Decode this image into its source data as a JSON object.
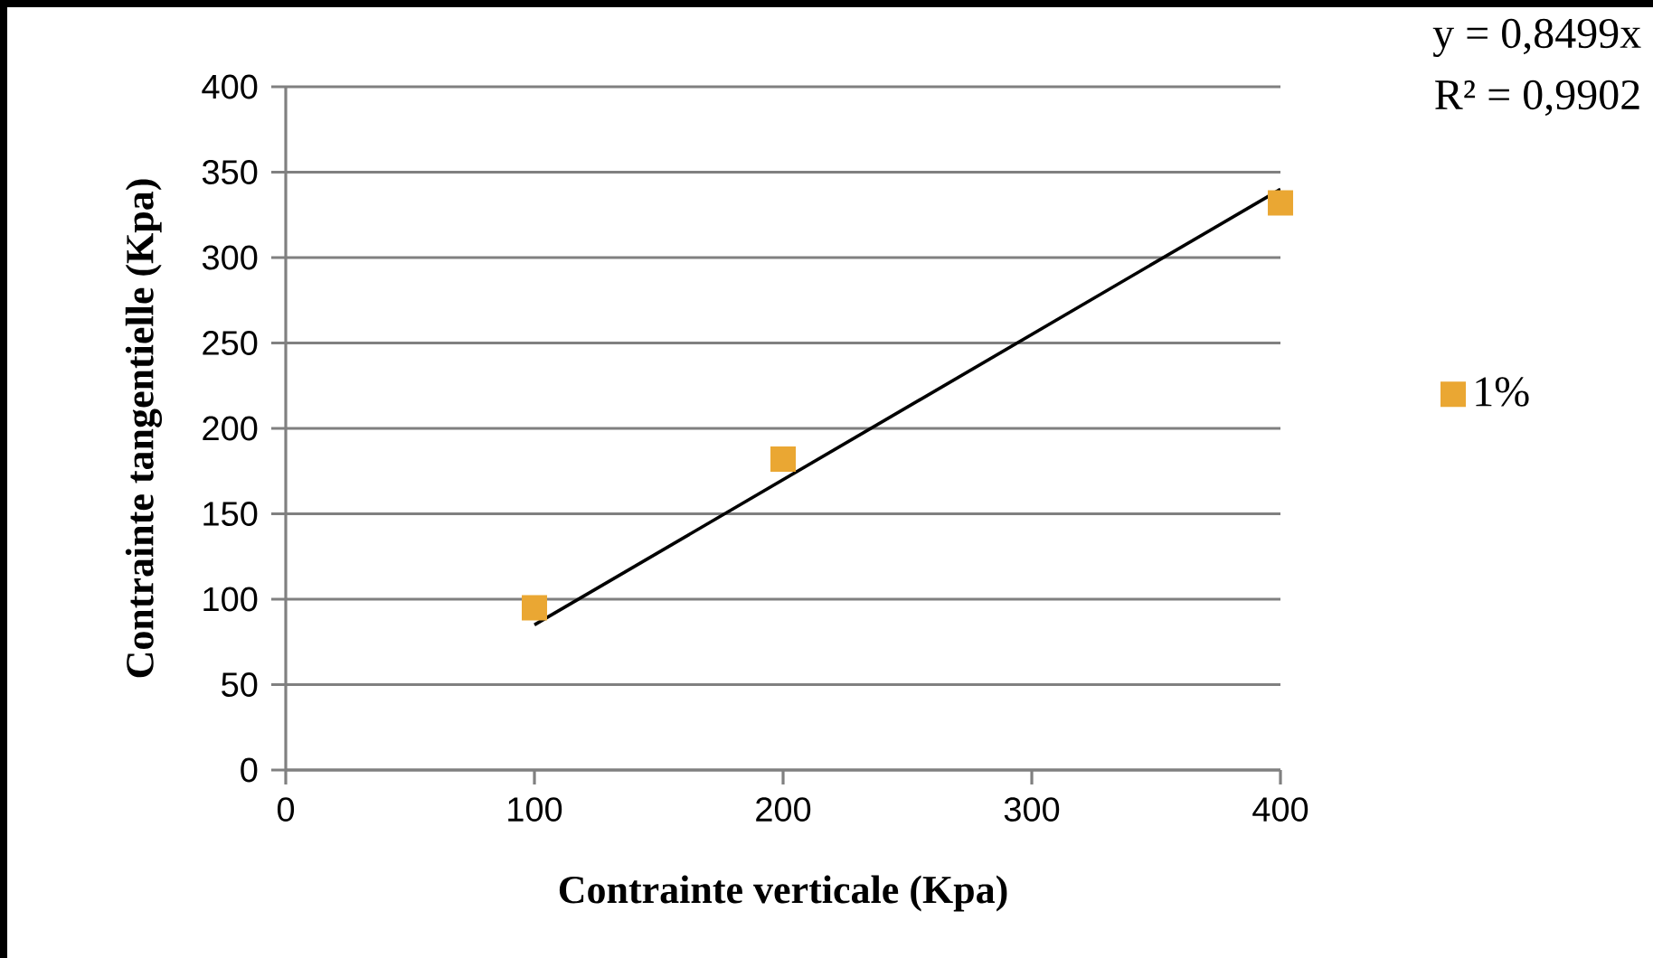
{
  "chart_data": {
    "type": "scatter",
    "xlabel": "Contrainte verticale  (Kpa)",
    "ylabel": "Contrainte tangentielle  (Kpa)",
    "xlim": [
      0,
      400
    ],
    "xticks": [
      0,
      100,
      200,
      300,
      400
    ],
    "ylim": [
      0,
      400
    ],
    "yticks": [
      0,
      50,
      100,
      150,
      200,
      250,
      300,
      350,
      400
    ],
    "grid": "y",
    "legend": "right",
    "annotations": [
      "y = 0,8499x",
      "R² = 0,9902"
    ],
    "series": [
      {
        "name": "1%",
        "marker": "square",
        "color": "#eaa733",
        "x": [
          100,
          200,
          400
        ],
        "values": [
          95,
          182,
          332
        ]
      },
      {
        "type": "line",
        "color": "#000000",
        "x": [
          100,
          400
        ],
        "values": [
          85,
          340
        ]
      }
    ]
  }
}
